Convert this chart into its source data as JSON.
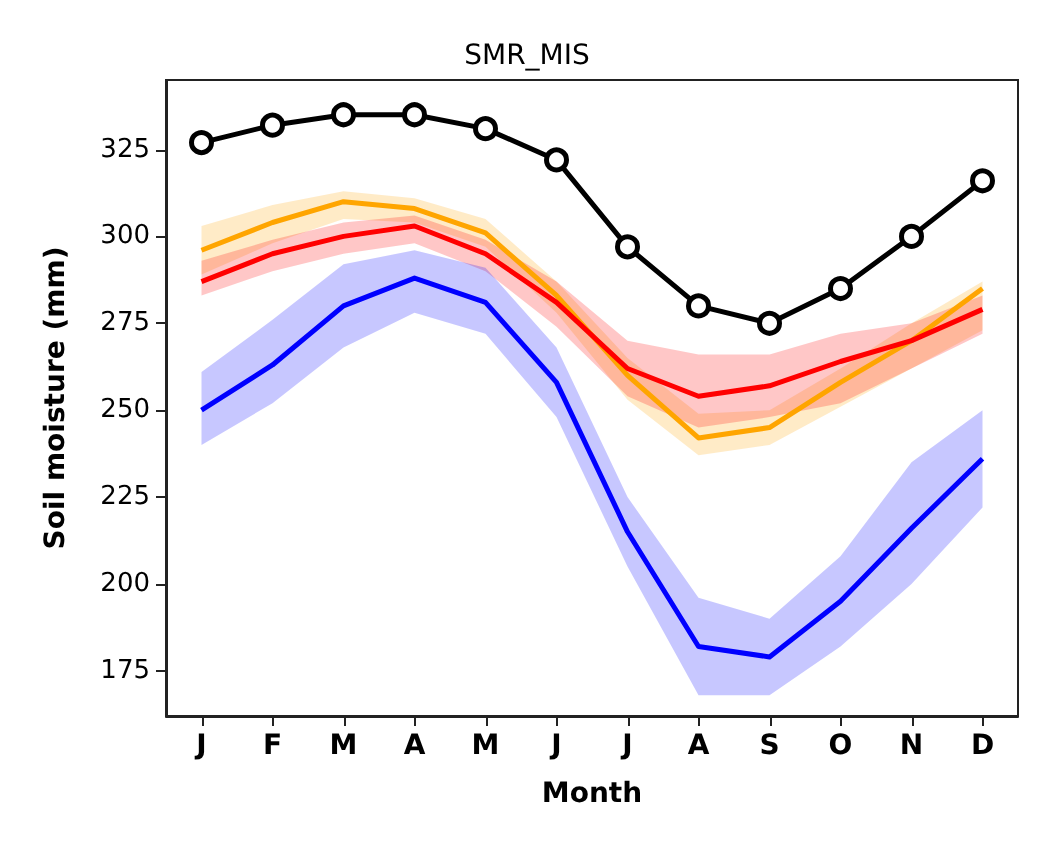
{
  "chart_data": {
    "type": "line",
    "title": "SMR_MIS",
    "xlabel": "Month",
    "ylabel": "Soil moisture (mm)",
    "categories": [
      "J",
      "F",
      "M",
      "A",
      "M",
      "J",
      "J",
      "A",
      "S",
      "O",
      "N",
      "D"
    ],
    "ylim": [
      162,
      345
    ],
    "yticks": [
      175,
      200,
      225,
      250,
      275,
      300,
      325
    ],
    "line_style": "solid",
    "series": [
      {
        "color": "#000000",
        "marker": "circle",
        "values": [
          327,
          332,
          335,
          335,
          331,
          322,
          297,
          280,
          275,
          285,
          300,
          316
        ]
      },
      {
        "color": "#ffa500",
        "marker": "none",
        "values": [
          296,
          304,
          310,
          308,
          301,
          283,
          260,
          242,
          245,
          258,
          270,
          285
        ],
        "lower": [
          289,
          298,
          305,
          304,
          297,
          278,
          253,
          237,
          240,
          251,
          262,
          273
        ],
        "upper": [
          303,
          309,
          313,
          311,
          305,
          287,
          265,
          249,
          250,
          262,
          275,
          287
        ]
      },
      {
        "color": "#ff0000",
        "marker": "none",
        "values": [
          287,
          295,
          300,
          303,
          295,
          281,
          262,
          254,
          257,
          264,
          270,
          279
        ],
        "lower": [
          283,
          290,
          295,
          298,
          290,
          274,
          254,
          245,
          248,
          252,
          262,
          272
        ],
        "upper": [
          293,
          299,
          304,
          306,
          299,
          287,
          270,
          266,
          266,
          272,
          275,
          283
        ]
      },
      {
        "color": "#0000ff",
        "marker": "none",
        "values": [
          250,
          263,
          280,
          288,
          281,
          258,
          215,
          182,
          179,
          195,
          216,
          236
        ],
        "lower": [
          240,
          252,
          268,
          278,
          272,
          248,
          205,
          168,
          168,
          182,
          200,
          222
        ],
        "upper": [
          261,
          276,
          292,
          296,
          291,
          268,
          225,
          196,
          190,
          208,
          235,
          250
        ]
      }
    ]
  }
}
